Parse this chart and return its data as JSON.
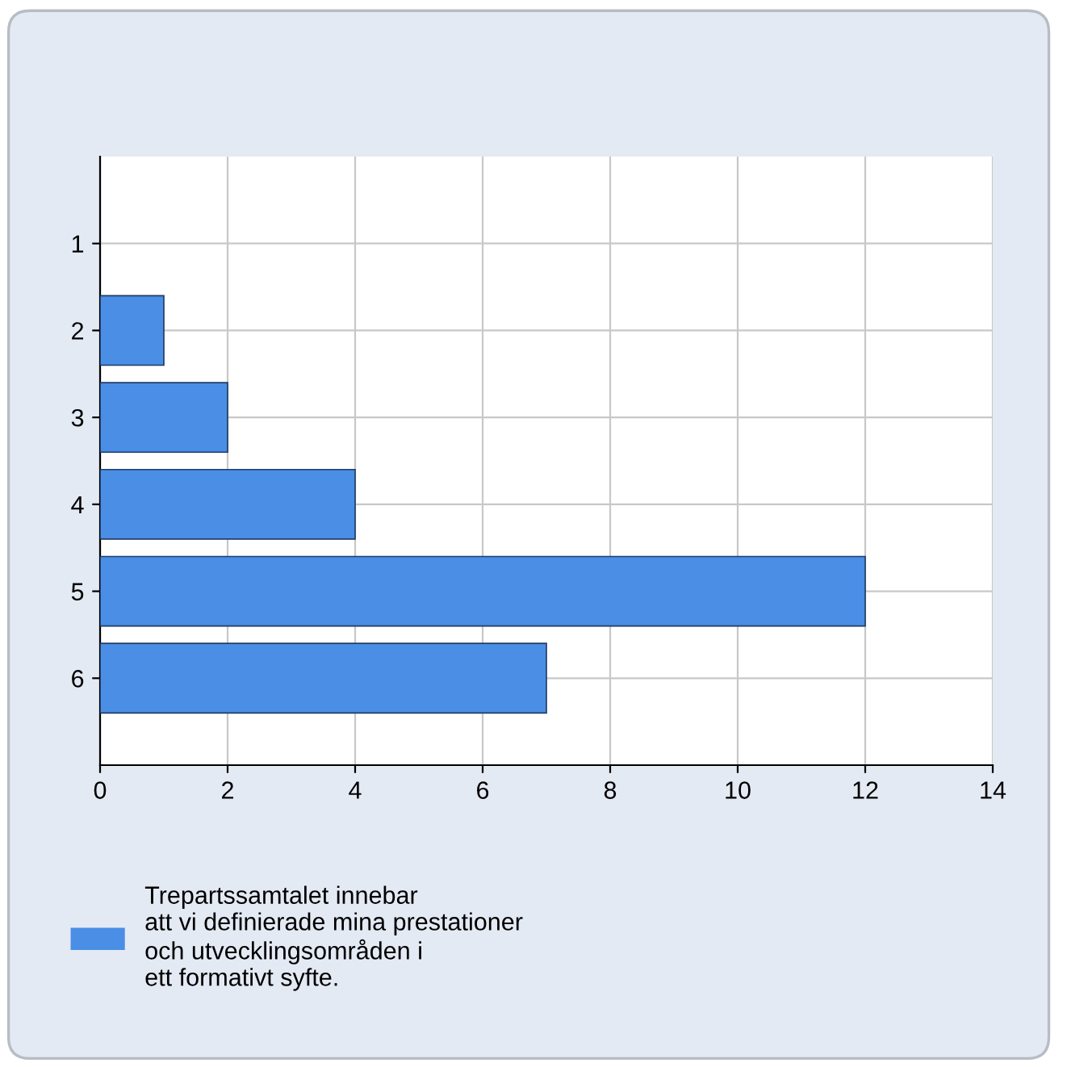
{
  "chart_data": {
    "type": "bar",
    "orientation": "horizontal",
    "categories": [
      "1",
      "2",
      "3",
      "4",
      "5",
      "6"
    ],
    "series": [
      {
        "name": "Trepartssamtalet innebar\natt vi definierade mina prestationer\noch utvecklingsområden i\nett formativt syfte.",
        "color": "#4a8ee6",
        "values": [
          0,
          1,
          2,
          4,
          12,
          7
        ]
      }
    ],
    "xlim": [
      0,
      14
    ],
    "xticks": [
      0,
      2,
      4,
      6,
      8,
      10,
      12,
      14
    ],
    "grid": true,
    "legend": "bottom"
  }
}
